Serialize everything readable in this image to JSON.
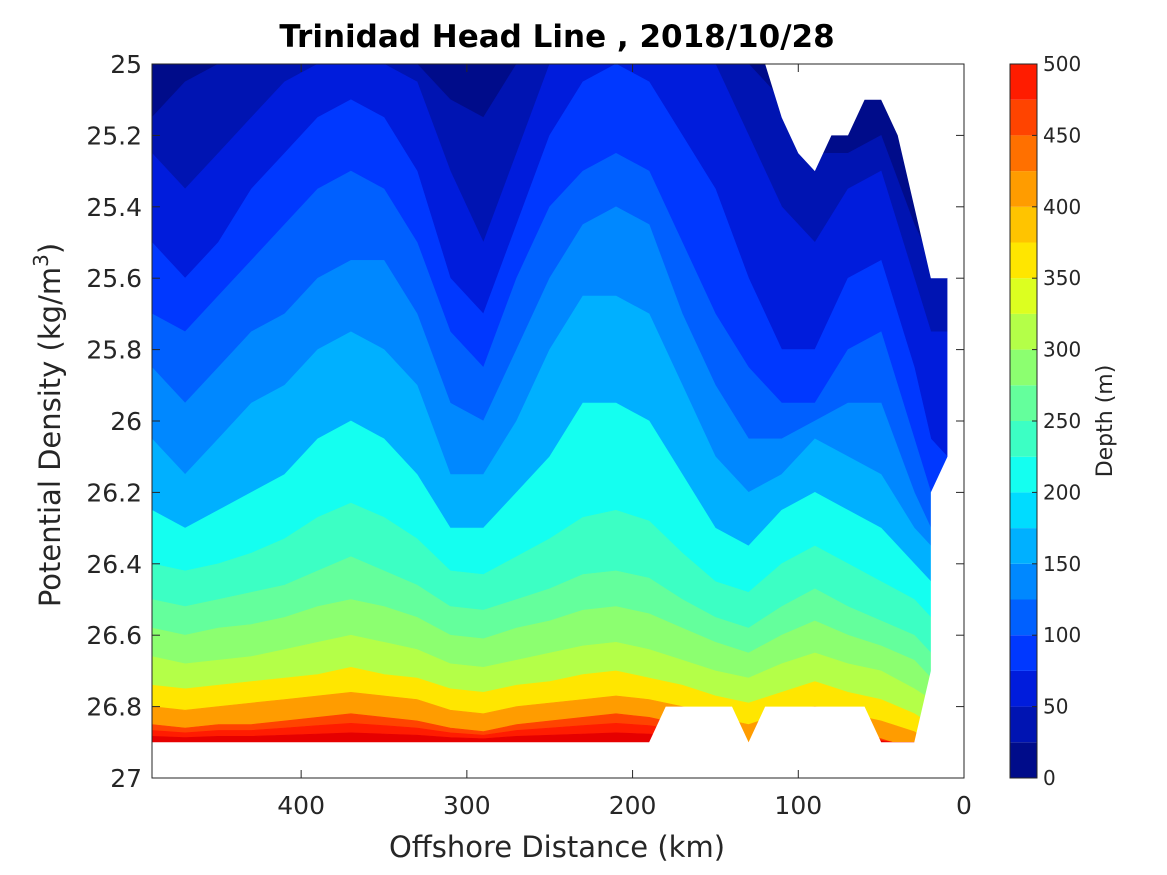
{
  "chart_data": {
    "type": "contourf",
    "title": "Trinidad Head Line , 2018/10/28",
    "xlabel": "Offshore Distance (km)",
    "ylabel_main": "Potential Density (kg/m",
    "ylabel_sup": "3",
    "ylabel_close": ")",
    "colorbar_label": "Depth (m)",
    "xlim": [
      490,
      0
    ],
    "ylim": [
      25,
      27
    ],
    "y_reversed": true,
    "x_reversed": true,
    "xticks": [
      400,
      300,
      200,
      100,
      0
    ],
    "yticks": [
      "25",
      "25.2",
      "25.4",
      "25.6",
      "25.8",
      "26",
      "26.2",
      "26.4",
      "26.6",
      "26.8",
      "27"
    ],
    "ytick_values": [
      25,
      25.2,
      25.4,
      25.6,
      25.8,
      26,
      26.2,
      26.4,
      26.6,
      26.8,
      27
    ],
    "colorbar_ticks": [
      0,
      50,
      100,
      150,
      200,
      250,
      300,
      350,
      400,
      450,
      500
    ],
    "colorbar_range": [
      0,
      500
    ],
    "levels": [
      0,
      25,
      50,
      75,
      100,
      125,
      150,
      175,
      200,
      225,
      250,
      275,
      300,
      325,
      350,
      375,
      400,
      425,
      450,
      475,
      500
    ],
    "colors": [
      "#000c8a",
      "#0014b2",
      "#001cdc",
      "#0038ff",
      "#0060ff",
      "#0088ff",
      "#00b0ff",
      "#00dcff",
      "#14fff0",
      "#3cffc4",
      "#64ff9c",
      "#8cff70",
      "#b4ff48",
      "#dcff20",
      "#ffe600",
      "#ffc400",
      "#ff9c00",
      "#ff7000",
      "#ff4400",
      "#ff1c00",
      "#e60000"
    ],
    "nodata_color": "#ffffff",
    "x": [
      490,
      470,
      450,
      430,
      410,
      390,
      370,
      350,
      330,
      310,
      290,
      270,
      250,
      230,
      210,
      190,
      170,
      150,
      130,
      110,
      90,
      70,
      50,
      30,
      20,
      10
    ],
    "contour_densities": [
      [
        25.15,
        25.05,
        25.0,
        25.0,
        25.0,
        25.0,
        25.0,
        25.0,
        25.0,
        25.1,
        25.15,
        25.0,
        25.0,
        25.0,
        25.0,
        25.0,
        25.0,
        25.0,
        25.0,
        25.1,
        25.25,
        25.25,
        25.2,
        25.45,
        25.55,
        25.6
      ],
      [
        25.25,
        25.35,
        25.25,
        25.15,
        25.05,
        25.0,
        25.0,
        25.0,
        25.05,
        25.3,
        25.5,
        25.25,
        25.0,
        25.0,
        25.0,
        25.0,
        25.0,
        25.0,
        25.2,
        25.4,
        25.5,
        25.35,
        25.3,
        25.6,
        25.75,
        25.75
      ],
      [
        25.5,
        25.6,
        25.5,
        25.35,
        25.25,
        25.15,
        25.1,
        25.15,
        25.3,
        25.6,
        25.7,
        25.45,
        25.2,
        25.05,
        25.0,
        25.05,
        25.2,
        25.35,
        25.6,
        25.8,
        25.8,
        25.6,
        25.55,
        25.85,
        26.05,
        26.1
      ],
      [
        25.7,
        25.75,
        25.65,
        25.55,
        25.45,
        25.35,
        25.3,
        25.35,
        25.5,
        25.75,
        25.85,
        25.6,
        25.4,
        25.3,
        25.25,
        25.3,
        25.5,
        25.7,
        25.85,
        25.95,
        25.95,
        25.8,
        25.75,
        26.05,
        26.2,
        26.25
      ],
      [
        25.85,
        25.95,
        25.85,
        25.75,
        25.7,
        25.6,
        25.55,
        25.55,
        25.7,
        25.95,
        26.0,
        25.8,
        25.6,
        25.45,
        25.4,
        25.45,
        25.7,
        25.9,
        26.05,
        26.05,
        26.0,
        25.95,
        25.95,
        26.2,
        26.3,
        26.3
      ],
      [
        26.05,
        26.15,
        26.05,
        25.95,
        25.9,
        25.8,
        25.75,
        25.8,
        25.9,
        26.15,
        26.15,
        26.0,
        25.8,
        25.65,
        25.65,
        25.7,
        25.9,
        26.1,
        26.2,
        26.15,
        26.05,
        26.1,
        26.15,
        26.3,
        26.35,
        26.35
      ],
      [
        26.25,
        26.3,
        26.25,
        26.2,
        26.15,
        26.05,
        26.0,
        26.05,
        26.15,
        26.3,
        26.3,
        26.2,
        26.1,
        25.95,
        25.95,
        26.0,
        26.15,
        26.3,
        26.35,
        26.25,
        26.2,
        26.25,
        26.3,
        26.4,
        26.45,
        26.45
      ],
      [
        26.4,
        26.42,
        26.4,
        26.37,
        26.33,
        26.27,
        26.23,
        26.27,
        26.33,
        26.42,
        26.43,
        26.38,
        26.33,
        26.27,
        26.25,
        26.28,
        26.37,
        26.45,
        26.48,
        26.4,
        26.35,
        26.4,
        26.45,
        26.5,
        26.55,
        26.55
      ],
      [
        26.5,
        26.52,
        26.5,
        26.48,
        26.46,
        26.42,
        26.38,
        26.42,
        26.46,
        26.52,
        26.53,
        26.5,
        26.47,
        26.43,
        26.42,
        26.44,
        26.5,
        26.55,
        26.58,
        26.52,
        26.47,
        26.52,
        26.56,
        26.6,
        26.65,
        26.65
      ],
      [
        26.58,
        26.6,
        26.58,
        26.57,
        26.55,
        26.52,
        26.5,
        26.52,
        26.55,
        26.6,
        26.61,
        26.58,
        26.56,
        26.53,
        26.52,
        26.54,
        26.58,
        26.62,
        26.65,
        26.6,
        26.56,
        26.6,
        26.63,
        26.67,
        26.72,
        26.72
      ],
      [
        26.66,
        26.68,
        26.67,
        26.66,
        26.64,
        26.62,
        26.6,
        26.62,
        26.64,
        26.68,
        26.69,
        26.67,
        26.65,
        26.63,
        26.62,
        26.64,
        26.67,
        26.7,
        26.72,
        26.68,
        26.65,
        26.68,
        26.7,
        26.75,
        26.78,
        26.78
      ],
      [
        26.74,
        26.75,
        26.74,
        26.73,
        26.72,
        26.71,
        26.69,
        26.71,
        26.72,
        26.75,
        26.76,
        26.74,
        26.73,
        26.71,
        26.7,
        26.72,
        26.74,
        26.77,
        26.79,
        26.76,
        26.73,
        26.76,
        26.78,
        26.82,
        26.85,
        26.85
      ],
      [
        26.8,
        26.81,
        26.8,
        26.79,
        26.78,
        26.77,
        26.76,
        26.77,
        26.78,
        26.81,
        26.82,
        26.8,
        26.79,
        26.78,
        26.77,
        26.78,
        26.8,
        26.83,
        26.85,
        26.82,
        26.8,
        26.82,
        26.84,
        26.87,
        26.9,
        26.9
      ],
      [
        26.85,
        26.86,
        26.85,
        26.85,
        26.84,
        26.83,
        26.82,
        26.83,
        26.84,
        26.86,
        26.87,
        26.85,
        26.84,
        26.83,
        26.82,
        26.83,
        26.85,
        26.88,
        26.9,
        26.87,
        26.85,
        26.87,
        26.89,
        26.92,
        26.95,
        26.95
      ]
    ],
    "contour_level_index": [
      0,
      1,
      2,
      3,
      4,
      5,
      6,
      8,
      9,
      10,
      11,
      12,
      14,
      16
    ],
    "nodata_top_x": [
      130,
      120,
      110,
      100,
      90,
      80,
      70,
      60,
      50,
      40,
      30,
      20,
      10
    ],
    "nodata_top_y": [
      25.0,
      25.0,
      25.15,
      25.25,
      25.3,
      25.2,
      25.2,
      25.1,
      25.1,
      25.2,
      25.4,
      25.6,
      25.6
    ],
    "nodata_bottom_x": [
      490,
      190,
      180,
      150,
      140,
      130,
      120,
      90,
      60,
      50,
      30,
      20,
      10
    ],
    "nodata_bottom_y": [
      26.9,
      26.9,
      26.8,
      26.8,
      26.8,
      26.9,
      26.8,
      26.8,
      26.8,
      26.9,
      26.9,
      26.7,
      26.6
    ],
    "nodata_right_x": [
      10,
      20,
      20
    ],
    "nodata_right_y": [
      26.1,
      26.2,
      26.7
    ]
  }
}
